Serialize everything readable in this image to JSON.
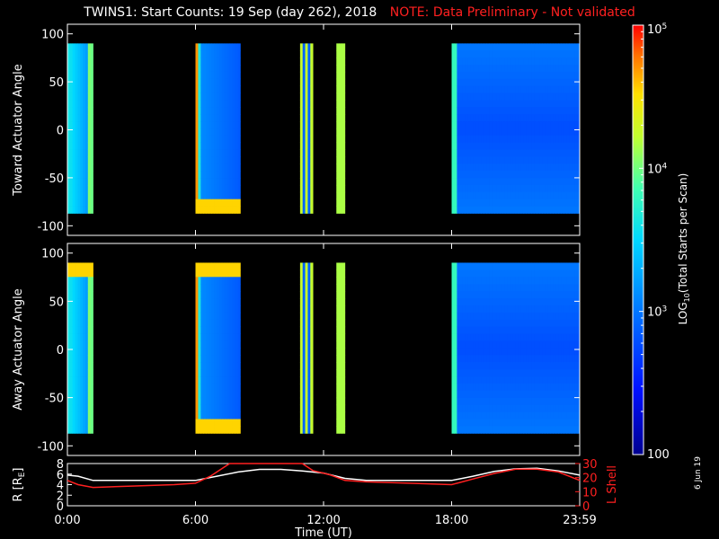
{
  "title": {
    "main": "TWINS1: Start Counts: 19 Sep (day 262), 2018",
    "note": "NOTE: Data Preliminary - Not validated"
  },
  "date_stamp": "6 Jun 19",
  "colors": {
    "note": "#ff2020",
    "r_line": "#ffffff",
    "lshell_line": "#ff2020",
    "background": "#000000"
  },
  "chart_data": [
    {
      "type": "heatmap",
      "ylabel": "Toward Actuator Angle",
      "ylim": [
        -110,
        110
      ],
      "yticks": [
        100,
        50,
        0,
        -50,
        -100
      ],
      "xlim": [
        0,
        24
      ],
      "data_intervals_ut": [
        [
          0.0,
          1.2
        ],
        [
          6.0,
          8.1
        ],
        [
          10.9,
          11.5
        ],
        [
          12.6,
          13.0
        ],
        [
          18.0,
          24.0
        ]
      ],
      "angle_range": [
        -87,
        90
      ]
    },
    {
      "type": "heatmap",
      "ylabel": "Away Actuator Angle",
      "ylim": [
        -110,
        110
      ],
      "yticks": [
        100,
        50,
        0,
        -50,
        -100
      ],
      "xlim": [
        0,
        24
      ],
      "data_intervals_ut": [
        [
          0.0,
          1.2
        ],
        [
          6.0,
          8.1
        ],
        [
          10.9,
          11.5
        ],
        [
          12.6,
          13.0
        ],
        [
          18.0,
          24.0
        ]
      ],
      "angle_range": [
        -87,
        90
      ]
    },
    {
      "type": "line",
      "xlabel": "Time (UT)",
      "xlim": [
        0,
        24
      ],
      "xticks": [
        "0:00",
        "6:00",
        "12:00",
        "18:00",
        "23:59"
      ],
      "xtick_values": [
        0,
        6,
        12,
        18,
        24
      ],
      "ylabel_left": "R [R",
      "ylabel_left_sub": "E",
      "ylabel_left_end": "]",
      "ylim_left": [
        0,
        8
      ],
      "yticks_left": [
        8,
        6,
        4,
        2,
        0
      ],
      "ylabel_right": "L Shell",
      "ylim_right": [
        0,
        30
      ],
      "yticks_right": [
        30,
        20,
        10,
        0
      ],
      "series": [
        {
          "axis": "left",
          "x": [
            0,
            0.5,
            1.2,
            3,
            6,
            7,
            8,
            9,
            10,
            11,
            12,
            13,
            14,
            16,
            18,
            19,
            20,
            21,
            22,
            23,
            24
          ],
          "values": [
            5.8,
            5.6,
            4.8,
            4.8,
            4.8,
            5.6,
            6.4,
            6.9,
            6.9,
            6.6,
            6.2,
            5.2,
            4.8,
            4.8,
            4.8,
            5.6,
            6.5,
            7.0,
            7.1,
            6.6,
            5.8
          ]
        },
        {
          "axis": "right",
          "x": [
            0,
            0.5,
            1.2,
            3,
            5,
            6,
            6.7,
            7.2,
            7.6,
            11.0,
            11.5,
            12.3,
            13.0,
            14,
            16,
            18,
            19,
            20,
            21,
            22,
            23,
            24
          ],
          "values": [
            18,
            15,
            13,
            14,
            15,
            16,
            21,
            26,
            30,
            30,
            25,
            22,
            18,
            17,
            16,
            15,
            19,
            23,
            26,
            26,
            24,
            18
          ]
        }
      ]
    },
    {
      "type": "colorbar",
      "label": "LOG",
      "label_sub": "10",
      "label_rest": "(Total Starts per Scan)",
      "scale": "log",
      "range": [
        100,
        100000
      ],
      "ticks": [
        {
          "base": "10",
          "exp": "5",
          "value": 100000
        },
        {
          "base": "10",
          "exp": "4",
          "value": 10000
        },
        {
          "base": "10",
          "exp": "3",
          "value": 1000
        },
        {
          "base": "100",
          "exp": "",
          "value": 100
        }
      ]
    }
  ]
}
